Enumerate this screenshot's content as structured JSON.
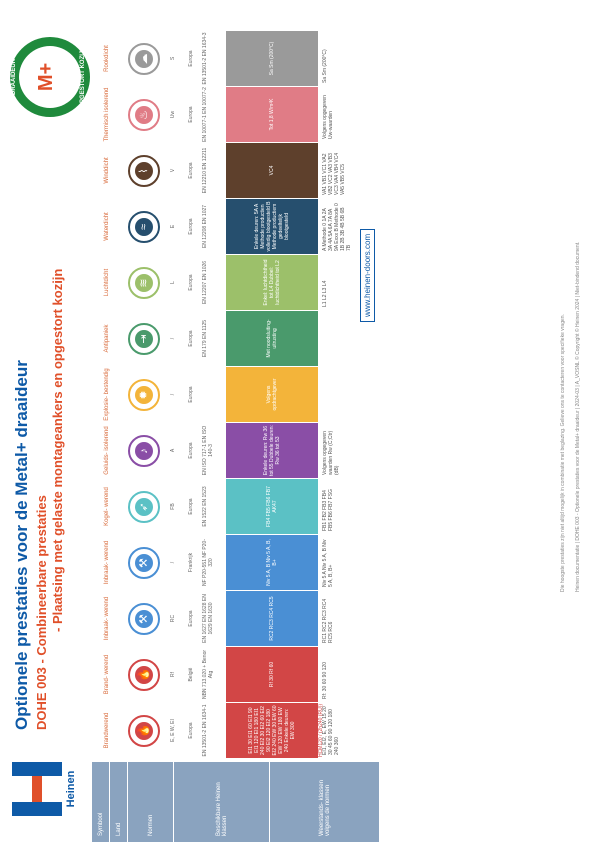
{
  "header": {
    "title": "Optionele prestaties voor de Metal+ draaideur",
    "subtitle": "DOHE 003 - Combineerbare prestaties",
    "subtitle2": "- Plaatsing met gelaste montageankers en opgestort kozijn"
  },
  "brand": {
    "logo_text": "Heinen",
    "logo_color": "#0e5aa7",
    "accent": "#e0502a"
  },
  "badge": {
    "top": "DRAAIDEUR",
    "middle": "M+",
    "sub": "METAL+ HEINEN",
    "bottom": "OPGESTORT KOZIJN"
  },
  "rows": {
    "symbol": "Symbool",
    "land": "Land",
    "normen": "Normen",
    "beschikbaar": "Beschikbare Heinen klassen",
    "weerstand": "Weerstands- klassen volgens de normen"
  },
  "columns": [
    {
      "head": "Brandwerend",
      "color": "#d24646",
      "icon": "fire-door-icon",
      "symbol": "E, E W, EI",
      "land": "Europa",
      "normen": "EN 13501-2 EN 1634-1",
      "band": "EI1 30 EI1 60 EI1 90 EI1 120 EI1 180 EI1 240 EI2 30 EI2 60 EI2 90 EI2 120 EI2 180 EI2 240 EW 30 EW 60 EW 120 EW 180 EW 240 Enkele deuren: EW 300",
      "band_extra": "HCM120 / (2h240 (RU))",
      "res": "EI1, EI2, E, EW 15 20 30 45 60 90 120 180 240 360"
    },
    {
      "head": "Brand- werend",
      "color": "#d24646",
      "icon": "fire-rating-icon",
      "symbol": "Rf",
      "land": "België",
      "normen": "NBN 713.020 + Benor Atg",
      "band": "Rf 30 Rf 60",
      "res": "Rf: 30 60 90 120"
    },
    {
      "head": "Inbraak- werend",
      "color": "#4a8fd4",
      "icon": "burglary-icon",
      "symbol": "RC",
      "land": "Europa",
      "normen": "EN 1627 EN 1628 EN 1629 EN 1630",
      "band": "RC2 RC3 RC4 RC5",
      "res": "RC1 RC2 RC3 RC4 RC5 RC6"
    },
    {
      "head": "Inbraak- werend",
      "color": "#4a8fd4",
      "icon": "burglary-france-icon",
      "symbol": "/",
      "land": "Frankrijk",
      "normen": "NF P20-551 NF P20-320",
      "band": "Niv 5 A, B Niv 5 A, B, B+",
      "res": "Niv 5 A Niv 5 A, B Niv 5 A, B, B+"
    },
    {
      "head": "Kogel- werend",
      "color": "#5bc1c5",
      "icon": "bullet-icon",
      "symbol": "FB",
      "land": "Europa",
      "normen": "EN 1522 EN 1523",
      "band": "FB4 FB5 FB6 FB7 AK47",
      "res": "FB1 FB2 FB3 FB4 FB5 FB6 FB7 FSG"
    },
    {
      "head": "Geluids- isolerend",
      "color": "#8a4ea6",
      "icon": "sound-icon",
      "symbol": "A",
      "land": "Europa",
      "normen": "EN ISO 717-1 EN ISO 140-3",
      "band": "Enkele deuren: Rw 36 tot 55 Dubbele deuren: Rw 36 tot 53",
      "res": "Volgens opgegeven waarden Rw (C;Ctr) (dB)"
    },
    {
      "head": "Explosie- bestendig",
      "color": "#f3b43a",
      "icon": "explosion-icon",
      "symbol": "/",
      "land": "Europa",
      "normen": "",
      "band": "Volgens opdrachtgever",
      "res": ""
    },
    {
      "head": "Antipaniek",
      "color": "#4a9a6c",
      "icon": "panic-exit-icon",
      "symbol": "/",
      "land": "Europa",
      "normen": "EN 179 EN 1125",
      "band": "Met noodsluiting- uitrusting",
      "res": ""
    },
    {
      "head": "Luchtdicht",
      "color": "#9cc06a",
      "icon": "airtight-icon",
      "symbol": "L",
      "land": "Europa",
      "normen": "EN 12207 EN 1026",
      "band": "Enkel: luchtdichtheid tot L4 Dubbel: luchtdichtheid tot L2",
      "res": "L1 L2 L3 L4"
    },
    {
      "head": "Waterdicht",
      "color": "#264f6e",
      "icon": "watertight-icon",
      "symbol": "E",
      "land": "Europa",
      "normen": "EN 12208 EN 1027",
      "band": "Enkele deuren: 5A A Methode productien volledig blootgesteld B Methode productiem gedeeltelijk blootgesteld",
      "res": "A Methode 0 1A 2A 3A 4A 5A 6A 7A 8A 9A Exxx B Methode 0 1B 2B 3B 4B 5B 6B 7B"
    },
    {
      "head": "Winddicht",
      "color": "#5e402c",
      "icon": "windtight-icon",
      "symbol": "V",
      "land": "Europa",
      "normen": "EN 12210 EN 12211",
      "band": "VC4",
      "res": "VA1 VB1 VC1 VA2 VB2 VC2 VA3 VB3 VC3 VA4 VB4 VC4 VA5 VB5 VC5"
    },
    {
      "head": "Thermisch isolerend",
      "color": "#e07c86",
      "icon": "thermal-icon",
      "symbol": "Uw",
      "land": "Europa",
      "normen": "EN 10077-1 EN 10077-2",
      "band": "Tot 1,8 W/m²K",
      "res": "Volgens opgegeven Uw-waarden"
    },
    {
      "head": "Rookdicht",
      "color": "#9a9a9a",
      "icon": "smoke-icon",
      "symbol": "S",
      "land": "Europa",
      "normen": "EN 13501-2 EN 1634-3",
      "band": "Sa Sm (200°C)",
      "res": "Sa Sm (200°C)"
    }
  ],
  "footer": {
    "note": "Die hoogste prestaties zijn niet altijd mogelijk in combinatie met beglazing. Gelieve ons te contacteren voor specifieke vragen.",
    "legal": "Heinen documentatie | DOHE 003 - Optionele prestaties voor de Metal+ draaideur | 2024-03 | A_VOSNL © Copyright © Heinen 2024 | Niet-bindend document.",
    "url": "www.heinen-doors.com"
  }
}
